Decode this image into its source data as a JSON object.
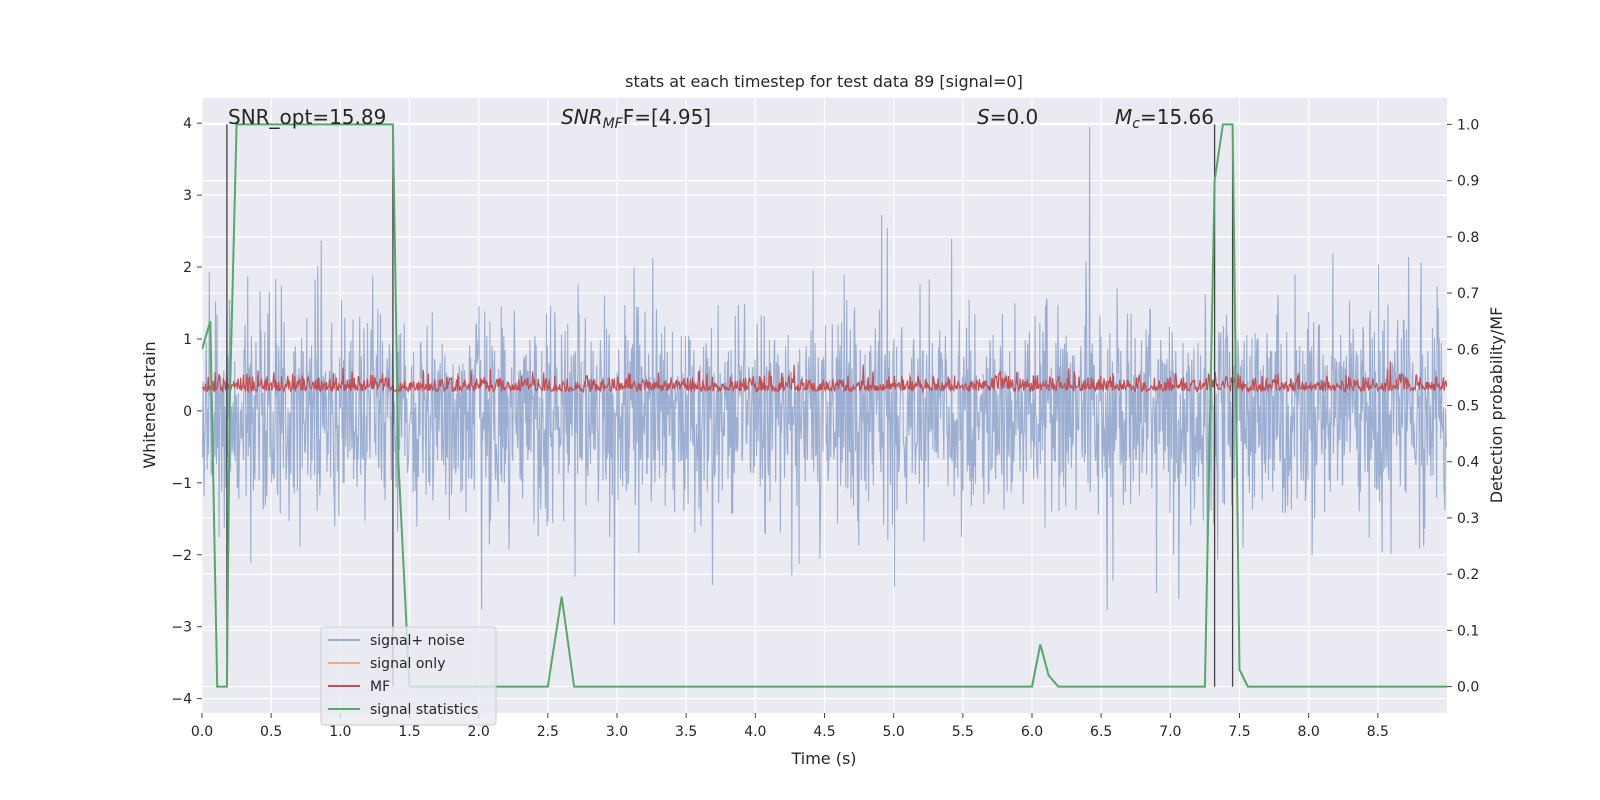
{
  "chart_data": {
    "type": "line",
    "title": "stats at each timestep for test data 89 [signal=0]",
    "xlabel": "Time (s)",
    "ylabel": "Whitened strain",
    "y2label": "Detection probability/MF",
    "xlim": [
      0.0,
      9.0
    ],
    "ylim": [
      -4.2,
      4.35
    ],
    "y2lim": [
      -0.047,
      1.047
    ],
    "grid": true,
    "legend_position": "lower-left",
    "xticks": [
      "0.0",
      "0.5",
      "1.0",
      "1.5",
      "2.0",
      "2.5",
      "3.0",
      "3.5",
      "4.0",
      "4.5",
      "5.0",
      "5.5",
      "6.0",
      "6.5",
      "7.0",
      "7.5",
      "8.0",
      "8.5"
    ],
    "yticks": [
      "4",
      "3",
      "2",
      "1",
      "0",
      "−1",
      "−2",
      "−3",
      "−4"
    ],
    "y2ticks": [
      "1.0",
      "0.9",
      "0.8",
      "0.7",
      "0.6",
      "0.5",
      "0.4",
      "0.3",
      "0.2",
      "0.1",
      "0.0"
    ],
    "annotations": {
      "snr_opt": "SNR_opt=15.89",
      "snr_mf_prefix": "SNR",
      "snr_mf_sub": "MF",
      "snr_mf_value": "F=[4.95]",
      "s_label": "S",
      "s_value": "=0.0",
      "mc_label": "M",
      "mc_sub": "c",
      "mc_value": "=15.66"
    },
    "series": [
      {
        "name": "signal+ noise",
        "color": "#4c72b0",
        "description_band": {
          "envelope_upper": [
            2.0,
            4.0
          ],
          "envelope_lower": [
            -1.5,
            -3.8
          ]
        }
      },
      {
        "name": "signal only",
        "color": "#dd8452",
        "values": []
      },
      {
        "name": "MF",
        "color": "#c44e52",
        "axis": "right",
        "range": [
          0.5,
          0.62
        ]
      },
      {
        "name": "signal statistics",
        "color": "#55a868",
        "axis": "right",
        "x": [
          0.0,
          0.06,
          0.11,
          0.18,
          0.2,
          0.25,
          1.35,
          1.38,
          1.42,
          1.5,
          2.5,
          2.6,
          2.69,
          6.0,
          6.06,
          6.12,
          6.19,
          7.25,
          7.32,
          7.38,
          7.45,
          7.5,
          7.56,
          9.0
        ],
        "values": [
          0.6,
          0.65,
          0.0,
          0.0,
          0.5,
          1.0,
          1.0,
          1.0,
          0.4,
          0.0,
          0.0,
          0.16,
          0.0,
          0.0,
          0.075,
          0.02,
          0.0,
          0.0,
          0.9,
          1.0,
          1.0,
          0.03,
          0.0,
          0.0
        ]
      }
    ],
    "vertical_markers": [
      0.18,
      1.38,
      7.32,
      7.45
    ]
  }
}
